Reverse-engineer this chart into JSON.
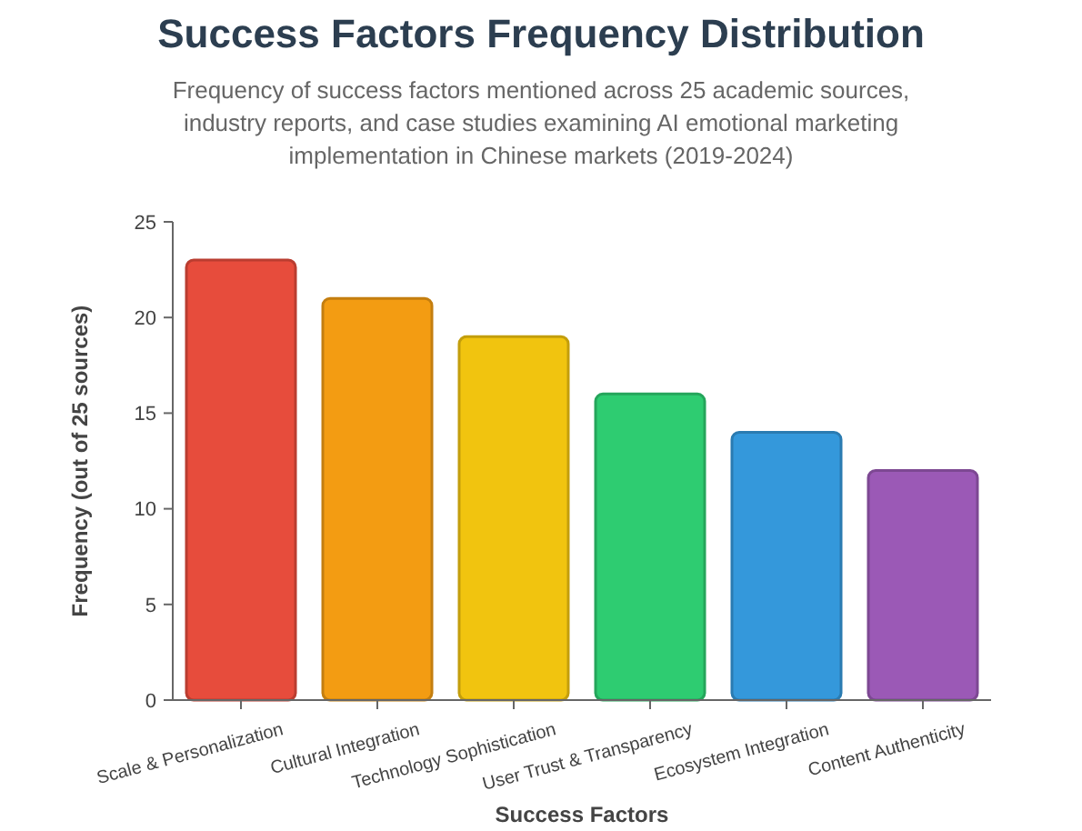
{
  "chart_data": {
    "type": "bar",
    "title": "Success Factors Frequency Distribution",
    "subtitle": "Frequency of success factors mentioned across 25 academic sources, industry reports, and case studies examining AI emotional marketing implementation in Chinese markets (2019-2024)",
    "xlabel": "Success Factors",
    "ylabel": "Frequency (out of 25 sources)",
    "categories": [
      "Scale & Personalization",
      "Cultural Integration",
      "Technology Sophistication",
      "User Trust & Transparency",
      "Ecosystem Integration",
      "Content Authenticity"
    ],
    "values": [
      23,
      21,
      19,
      16,
      14,
      12
    ],
    "colors": [
      "#e74c3c",
      "#f39c12",
      "#f1c40f",
      "#2ecc71",
      "#3498db",
      "#9b59b6"
    ],
    "ylim": [
      0,
      25
    ],
    "yticks": [
      0,
      5,
      10,
      15,
      20,
      25
    ]
  }
}
